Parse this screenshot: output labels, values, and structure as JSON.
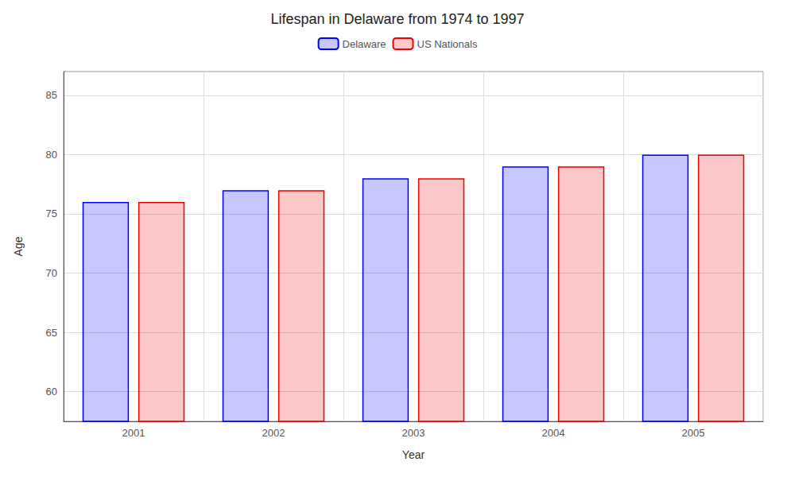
{
  "chart_data": {
    "type": "bar",
    "title": "Lifespan in Delaware from 1974 to 1997",
    "xlabel": "Year",
    "ylabel": "Age",
    "categories": [
      "2001",
      "2002",
      "2003",
      "2004",
      "2005"
    ],
    "series": [
      {
        "name": "Delaware",
        "color": "#0000ff",
        "values": [
          76,
          77,
          78,
          79,
          80
        ]
      },
      {
        "name": "US Nationals",
        "color": "#ee0000",
        "values": [
          76,
          77,
          78,
          79,
          80
        ]
      }
    ],
    "ylim": [
      57.5,
      87
    ],
    "yticks": [
      60,
      65,
      70,
      75,
      80,
      85
    ],
    "grid": true,
    "legend": "top"
  }
}
